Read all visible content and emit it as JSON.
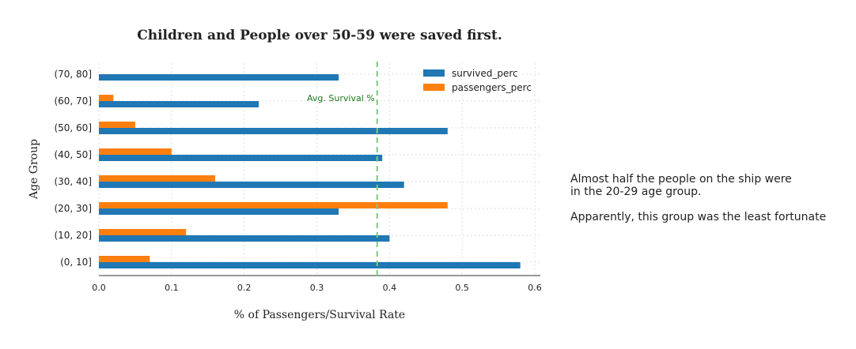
{
  "chart_data": {
    "type": "bar",
    "orientation": "horizontal",
    "title": "Children and People over 50-59 were saved first.",
    "xlabel": "% of Passengers/Survival Rate",
    "ylabel": "Age Group",
    "categories": [
      "(0, 10]",
      "(10, 20]",
      "(20, 30]",
      "(30, 40]",
      "(40, 50]",
      "(50, 60]",
      "(60, 70]",
      "(70, 80]"
    ],
    "series": [
      {
        "name": "survived_perc",
        "color": "#1f77b4",
        "values": [
          0.58,
          0.4,
          0.33,
          0.42,
          0.39,
          0.48,
          0.22,
          0.33
        ]
      },
      {
        "name": "passengers_perc",
        "color": "#ff7f0e",
        "values": [
          0.07,
          0.12,
          0.48,
          0.16,
          0.1,
          0.05,
          0.02,
          0.0
        ]
      }
    ],
    "xlim": [
      0.0,
      0.61
    ],
    "xticks": [
      0.0,
      0.1,
      0.2,
      0.3,
      0.4,
      0.5,
      0.6
    ],
    "xtick_labels": [
      "0.0",
      "0.1",
      "0.2",
      "0.3",
      "0.4",
      "0.5",
      "0.6"
    ],
    "grid": true,
    "legend_position": "top-right",
    "reference_line": {
      "value": 0.383,
      "label": "Avg. Survival %",
      "color": "#7fc97f",
      "label_color": "#1a7a1a"
    }
  },
  "annotation": {
    "line1": "Almost half the people on the ship were",
    "line2": "in the 20-29 age group.",
    "line3": "Apparently, this group was the least fortunate"
  }
}
